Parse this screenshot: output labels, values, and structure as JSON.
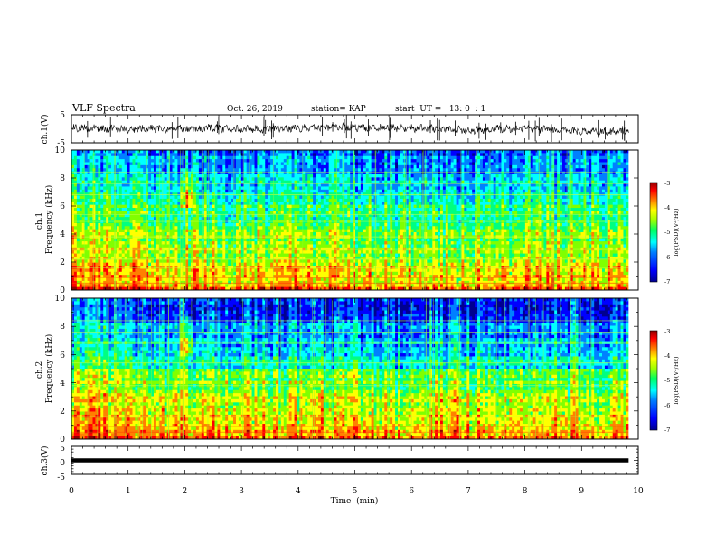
{
  "header": {
    "title": "VLF Spectra",
    "date": "Oct. 26, 2019",
    "station": "station= KAP",
    "start": "start  UT =   13: 0  : 1"
  },
  "chart_data": [
    {
      "type": "line",
      "name": "ch1-waveform",
      "ylabel": "ch.1(V)",
      "ylim": [
        -5,
        5
      ],
      "yticks": [
        "5",
        "-5"
      ],
      "xlim": [
        0,
        10
      ],
      "baseline_profile": {
        "t": [
          0,
          0.5,
          1,
          1.5,
          2,
          2.5,
          3,
          3.5,
          4,
          4.5,
          5,
          5.5,
          6,
          6.5,
          7,
          7.5,
          8,
          8.5,
          9,
          9.5,
          9.83
        ],
        "v": [
          0.3,
          0.0,
          -0.2,
          0.0,
          -0.1,
          0.2,
          -0.3,
          0.1,
          0.3,
          0.6,
          0.4,
          0.5,
          0.2,
          0.1,
          -0.7,
          0.0,
          0.2,
          -0.3,
          -1.0,
          -1.1,
          -1.0
        ]
      }
    },
    {
      "type": "heatmap",
      "name": "ch1-spectrogram",
      "ylabel": "ch.1\nFrequency  (kHz)",
      "ylim": [
        0,
        10
      ],
      "yticks": [
        "0",
        "2",
        "4",
        "6",
        "8",
        "10"
      ],
      "xlim": [
        0,
        9.83
      ],
      "colorbar": {
        "label": "log(PSD)(V²/Hz)",
        "range": [
          -7,
          -3
        ],
        "ticks": [
          "-3",
          "-4",
          "-5",
          "-6",
          "-7"
        ]
      }
    },
    {
      "type": "heatmap",
      "name": "ch2-spectrogram",
      "ylabel": "ch.2\nFrequency  (kHz)",
      "ylim": [
        0,
        10
      ],
      "yticks": [
        "0",
        "2",
        "4",
        "6",
        "8",
        "10"
      ],
      "xlim": [
        0,
        9.83
      ],
      "colorbar": {
        "label": "log(PSD)(V²/Hz)",
        "range": [
          -7,
          -3
        ],
        "ticks": [
          "-3",
          "-4",
          "-5",
          "-6",
          "-7"
        ]
      }
    },
    {
      "type": "line",
      "name": "ch3-waveform",
      "ylabel": "ch.3(V)",
      "ylim": [
        -5,
        5
      ],
      "yticks": [
        "5",
        "0",
        "-5"
      ],
      "xlim": [
        0,
        10
      ],
      "constant_value": 0
    }
  ],
  "x_axis": {
    "label": "Time  (min)",
    "range": [
      0,
      10
    ],
    "ticks": [
      "0",
      "1",
      "2",
      "3",
      "4",
      "5",
      "6",
      "7",
      "8",
      "9",
      "10"
    ]
  },
  "colors": {
    "ramp": [
      "#000090",
      "#0000ff",
      "#0080ff",
      "#00ffff",
      "#00ff80",
      "#80ff00",
      "#ffff00",
      "#ff8000",
      "#ff0000",
      "#900000"
    ]
  }
}
